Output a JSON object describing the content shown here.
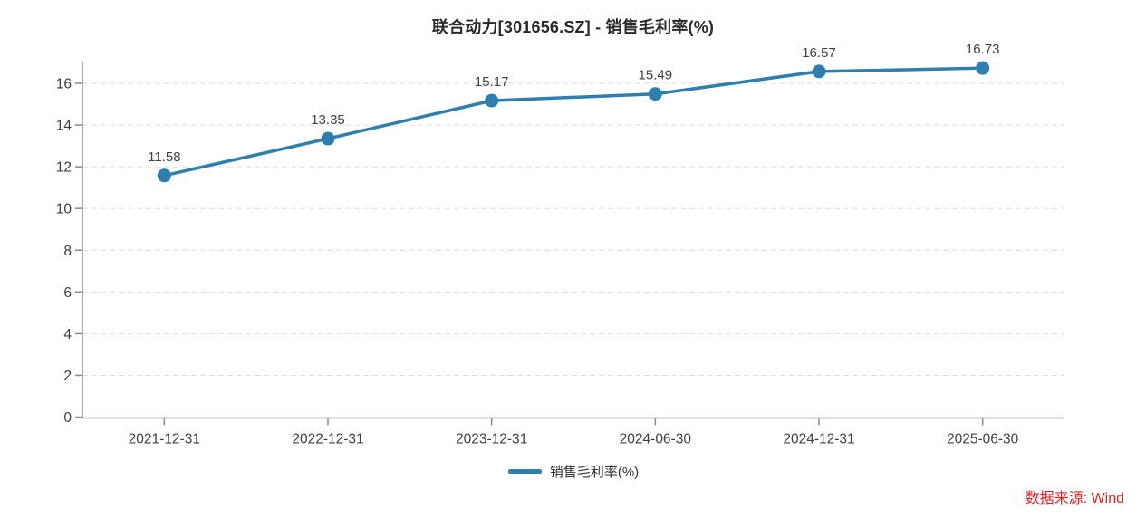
{
  "chart_data": {
    "type": "line",
    "title": "联合动力[301656.SZ] - 销售毛利率(%)",
    "categories": [
      "2021-12-31",
      "2022-12-31",
      "2023-12-31",
      "2024-06-30",
      "2024-12-31",
      "2025-06-30"
    ],
    "series": [
      {
        "name": "销售毛利率(%)",
        "values": [
          11.58,
          13.35,
          15.17,
          15.49,
          16.57,
          16.73
        ],
        "color": "#2e7eae"
      }
    ],
    "data_labels": [
      11.58,
      13.35,
      15.17,
      15.49,
      16.57,
      16.73
    ],
    "xlabel": "",
    "ylabel": "",
    "ylim": [
      0,
      16
    ],
    "yticks": [
      0,
      2,
      4,
      6,
      8,
      10,
      12,
      14,
      16
    ],
    "grid": "horizontal-dashed",
    "legend_position": "bottom-center"
  },
  "source_note": {
    "text": "数据来源: Wind",
    "color": "#e32222"
  },
  "style": {
    "axis_color": "#8a8a8a",
    "gridline_color": "#dddddd",
    "tick_label_color": "#404040",
    "value_label_color": "#404040",
    "title_color": "#2b2b2b",
    "legend_text_color": "#333333",
    "background": "#ffffff"
  }
}
